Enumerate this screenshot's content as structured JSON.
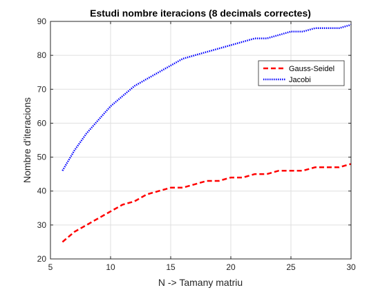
{
  "chart_data": {
    "type": "line",
    "title": "Estudi nombre iteracions (8 decimals correctes)",
    "xlabel": "N -> Tamany matriu",
    "ylabel": "Nombre d'iteracions",
    "xlim": [
      5,
      30
    ],
    "ylim": [
      20,
      90
    ],
    "xticks": [
      5,
      10,
      15,
      20,
      25,
      30
    ],
    "yticks": [
      20,
      30,
      40,
      50,
      60,
      70,
      80,
      90
    ],
    "grid": true,
    "legend_position": "top-right",
    "x": [
      6,
      7,
      8,
      9,
      10,
      11,
      12,
      13,
      14,
      15,
      16,
      17,
      18,
      19,
      20,
      21,
      22,
      23,
      24,
      25,
      26,
      27,
      28,
      29,
      30
    ],
    "series": [
      {
        "name": "Gauss-Seidel",
        "color": "#ff0000",
        "style": "dashed",
        "values": [
          25,
          28,
          30,
          32,
          34,
          36,
          37,
          39,
          40,
          41,
          41,
          42,
          43,
          43,
          44,
          44,
          45,
          45,
          46,
          46,
          46,
          47,
          47,
          47,
          48
        ]
      },
      {
        "name": "Jacobi",
        "color": "#0000ff",
        "style": "dotted",
        "values": [
          46,
          52,
          57,
          61,
          65,
          68,
          71,
          73,
          75,
          77,
          79,
          80,
          81,
          82,
          83,
          84,
          85,
          85,
          86,
          87,
          87,
          88,
          88,
          88,
          89
        ]
      }
    ]
  }
}
